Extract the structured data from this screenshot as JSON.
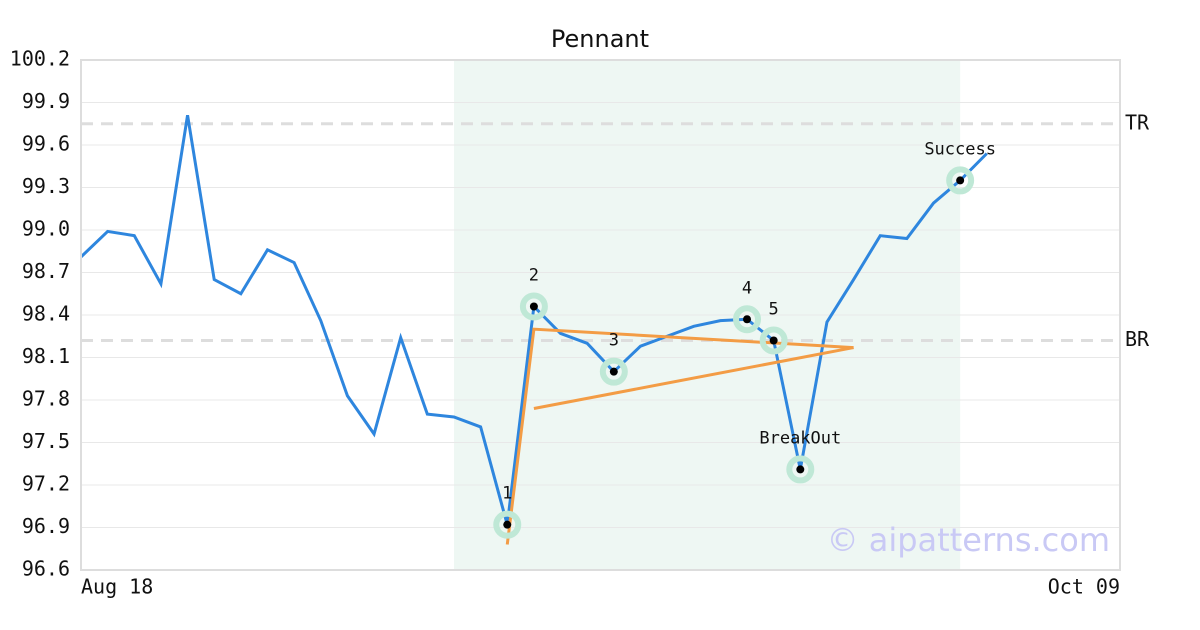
{
  "chart_data": {
    "type": "line",
    "title": "Pennant",
    "x": [
      0,
      1,
      2,
      3,
      4,
      5,
      6,
      7,
      8,
      9,
      10,
      11,
      12,
      13,
      14,
      15,
      16,
      17,
      18,
      19,
      20,
      21,
      22,
      23,
      24,
      25,
      26,
      27,
      28,
      29,
      30,
      31,
      32,
      33,
      34
    ],
    "values": [
      98.81,
      98.99,
      98.96,
      98.62,
      99.81,
      98.65,
      98.55,
      98.86,
      98.77,
      98.36,
      97.83,
      97.56,
      98.24,
      97.7,
      97.68,
      97.61,
      96.92,
      98.46,
      98.27,
      98.2,
      98.0,
      98.18,
      98.25,
      98.32,
      98.36,
      98.37,
      98.22,
      97.31,
      98.35,
      98.65,
      98.96,
      98.94,
      99.19,
      99.35,
      99.54
    ],
    "color": "#2e86de",
    "xlim": [
      0,
      39
    ],
    "xticks": [
      {
        "value": 0,
        "label": "Aug 18"
      },
      {
        "value": 39,
        "label": "Oct 09"
      }
    ],
    "ylim": [
      96.6,
      100.2
    ],
    "yticks": [
      96.6,
      96.9,
      97.2,
      97.5,
      97.8,
      98.1,
      98.4,
      98.7,
      {
        "value": 99.0,
        "label": "99.0"
      },
      99.3,
      99.6,
      99.9,
      100.2
    ],
    "grid": true,
    "shaded": {
      "x": [
        14,
        33
      ],
      "color": "#eef7f3"
    },
    "hlines": [
      {
        "label": "TR",
        "value": 99.75
      },
      {
        "label": "BR",
        "value": 98.22
      }
    ],
    "points": [
      {
        "label": "1",
        "x": 16,
        "y": 96.92
      },
      {
        "label": "2",
        "x": 17,
        "y": 98.46
      },
      {
        "label": "3",
        "x": 20,
        "y": 98.0
      },
      {
        "label": "4",
        "x": 25,
        "y": 98.37
      },
      {
        "label": "5",
        "x": 26,
        "y": 98.22
      },
      {
        "label": "BreakOut",
        "x": 27,
        "y": 97.31
      },
      {
        "label": "Success",
        "x": 33,
        "y": 99.35
      }
    ],
    "trendlines": [
      {
        "x": [
          16,
          17,
          29
        ],
        "y": [
          96.78,
          98.3,
          98.17
        ]
      },
      {
        "x": [
          17,
          29
        ],
        "y": [
          97.74,
          98.17
        ]
      }
    ],
    "trend_color": "#f39c45",
    "watermark": "© aipatterns.com"
  }
}
